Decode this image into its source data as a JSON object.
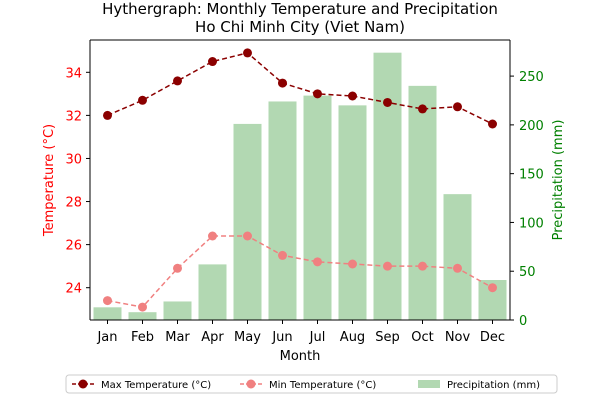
{
  "chart_data": {
    "type": "bar+line",
    "title": "Hythergraph: Monthly Temperature and Precipitation",
    "subtitle": "Ho Chi Minh City (Viet Nam)",
    "xlabel": "Month",
    "ylabel_left": "Temperature (°C)",
    "ylabel_right": "Precipitation (mm)",
    "categories": [
      "Jan",
      "Feb",
      "Mar",
      "Apr",
      "May",
      "Jun",
      "Jul",
      "Aug",
      "Sep",
      "Oct",
      "Nov",
      "Dec"
    ],
    "ylim_left": [
      22.5,
      35.5
    ],
    "ylim_right": [
      0,
      287
    ],
    "yticks_left": [
      24,
      26,
      28,
      30,
      32,
      34
    ],
    "yticks_right": [
      0,
      50,
      100,
      150,
      200,
      250
    ],
    "grid": false,
    "legend_position": "bottom-center",
    "series": [
      {
        "name": "Max Temperature (°C)",
        "kind": "line",
        "axis": "left",
        "color": "#8b0000",
        "values": [
          32.0,
          32.7,
          33.6,
          34.5,
          34.9,
          33.5,
          33.0,
          32.9,
          32.6,
          32.3,
          32.4,
          31.6
        ]
      },
      {
        "name": "Min Temperature (°C)",
        "kind": "line",
        "axis": "left",
        "color": "#f08080",
        "values": [
          23.4,
          23.1,
          24.9,
          26.4,
          26.4,
          25.5,
          25.2,
          25.1,
          25.0,
          25.0,
          24.9,
          24.0
        ]
      },
      {
        "name": "Precipitation (mm)",
        "kind": "bar",
        "axis": "right",
        "color": "#b2d8b2",
        "values": [
          13,
          8,
          19,
          57,
          201,
          224,
          230,
          220,
          274,
          240,
          129,
          41
        ]
      }
    ],
    "colors": {
      "left_axis": "#ff0000",
      "right_axis": "#008000",
      "axis": "#000000"
    }
  }
}
